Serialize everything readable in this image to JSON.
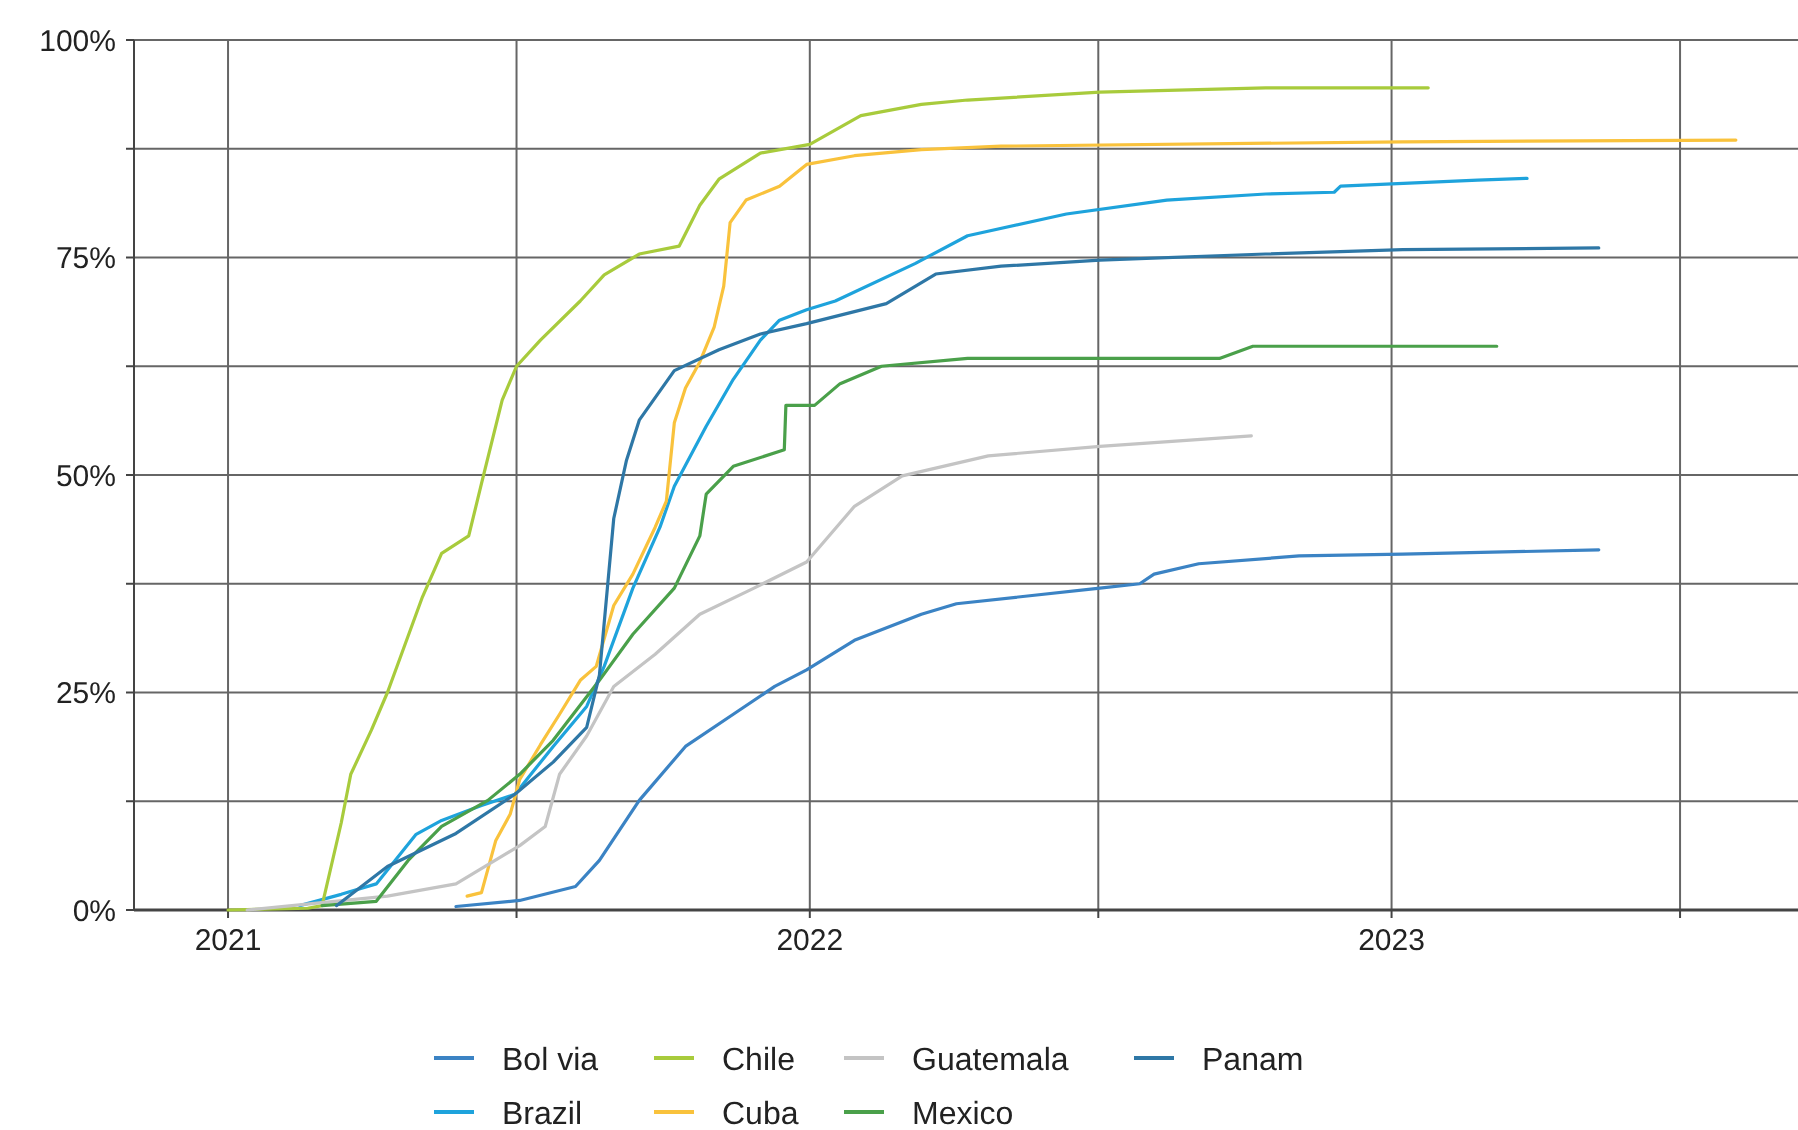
{
  "chart_data": {
    "type": "line",
    "xlim": [
      "2020-11-03",
      "2023-09-13"
    ],
    "xticks": [
      {
        "value": "2021-01-01",
        "label": "2021"
      },
      {
        "value": "2021-07-01",
        "label": null
      },
      {
        "value": "2022-01-01",
        "label": "2022"
      },
      {
        "value": "2022-07-01",
        "label": null
      },
      {
        "value": "2023-01-01",
        "label": "2023"
      },
      {
        "value": "2023-07-01",
        "label": null
      }
    ],
    "ylim": [
      0,
      100
    ],
    "yticks": [
      {
        "value": 0,
        "label": "0%"
      },
      {
        "value": 12.5,
        "label": null
      },
      {
        "value": 25,
        "label": "25%"
      },
      {
        "value": 37.5,
        "label": null
      },
      {
        "value": 50,
        "label": "50%"
      },
      {
        "value": 62.5,
        "label": null
      },
      {
        "value": 75,
        "label": "75%"
      },
      {
        "value": 87.5,
        "label": null
      },
      {
        "value": 100,
        "label": "100%"
      }
    ],
    "grid": true,
    "legend": "bottom",
    "marker": "none",
    "line_style": "solid",
    "series": [
      {
        "name": "Bol via",
        "color": "#3b83c4",
        "x": [
          "2021-05-24",
          "2021-07-03",
          "2021-08-07",
          "2021-08-22",
          "2021-09-16",
          "2021-10-15",
          "2021-11-14",
          "2021-12-10",
          "2021-12-30",
          "2022-01-29",
          "2022-03-12",
          "2022-04-03",
          "2022-07-02",
          "2022-07-27",
          "2022-08-05",
          "2022-09-02",
          "2022-11-04",
          "2023-01-08",
          "2023-05-11"
        ],
        "values": [
          0.4,
          1.1,
          2.7,
          5.7,
          12.6,
          18.8,
          22.5,
          25.7,
          27.6,
          31,
          34,
          35.2,
          37,
          37.5,
          38.6,
          39.8,
          40.7,
          40.9,
          41.4
        ]
      },
      {
        "name": "Brazil",
        "color": "#1ea3dc",
        "x": [
          "2021-02-15",
          "2021-03-13",
          "2021-04-04",
          "2021-04-29",
          "2021-05-15",
          "2021-06-09",
          "2021-06-30",
          "2021-07-24",
          "2021-08-14",
          "2021-08-25",
          "2021-09-12",
          "2021-09-29",
          "2021-10-08",
          "2021-10-28",
          "2021-11-14",
          "2021-12-01",
          "2021-12-13",
          "2021-12-30",
          "2022-01-17",
          "2022-03-08",
          "2022-04-10",
          "2022-06-11",
          "2022-08-13",
          "2022-10-14",
          "2022-11-26",
          "2022-11-30",
          "2023-02-24",
          "2023-03-27"
        ],
        "values": [
          0.5,
          1.8,
          3,
          8.7,
          10.3,
          12,
          13.3,
          18.8,
          23.4,
          28,
          37,
          44,
          48.7,
          55.6,
          61,
          65.5,
          67.8,
          69,
          70,
          74.3,
          77.5,
          80,
          81.6,
          82.3,
          82.5,
          83.2,
          83.9,
          84.1
        ]
      },
      {
        "name": "Chile",
        "color": "#a8cb3c",
        "x": [
          "2021-01-01",
          "2021-02-20",
          "2021-03-01",
          "2021-03-13",
          "2021-03-19",
          "2021-04-01",
          "2021-04-11",
          "2021-04-19",
          "2021-05-03",
          "2021-05-15",
          "2021-06-01",
          "2021-06-09",
          "2021-06-22",
          "2021-07-01",
          "2021-07-16",
          "2021-08-10",
          "2021-08-25",
          "2021-09-16",
          "2021-10-11",
          "2021-10-24",
          "2021-11-05",
          "2021-12-01",
          "2022-01-01",
          "2022-02-02",
          "2022-03-12",
          "2022-04-10",
          "2022-07-02",
          "2022-10-14",
          "2023-01-24"
        ],
        "values": [
          0,
          0.2,
          0.5,
          10,
          15.6,
          20.7,
          25,
          29,
          36,
          41,
          43,
          49,
          58.6,
          62.5,
          65.5,
          70,
          73,
          75.4,
          76.3,
          81,
          84,
          87,
          88,
          91.3,
          92.6,
          93.1,
          94,
          94.5,
          94.5
        ]
      },
      {
        "name": "Cuba",
        "color": "#f9c23c",
        "x": [
          "2021-05-31",
          "2021-06-09",
          "2021-06-18",
          "2021-06-27",
          "2021-07-03",
          "2021-07-16",
          "2021-07-28",
          "2021-08-10",
          "2021-08-20",
          "2021-08-31",
          "2021-09-12",
          "2021-09-26",
          "2021-10-03",
          "2021-10-08",
          "2021-10-15",
          "2021-10-24",
          "2021-11-02",
          "2021-11-08",
          "2021-11-12",
          "2021-11-22",
          "2021-12-13",
          "2021-12-30",
          "2022-01-29",
          "2022-03-12",
          "2022-05-01",
          "2023-01-08",
          "2023-08-05"
        ],
        "values": [
          1.6,
          2,
          8,
          11,
          15,
          19,
          22.5,
          26.4,
          28,
          35,
          38.6,
          44,
          47,
          56,
          60,
          63,
          67,
          71.7,
          79,
          81.6,
          83.2,
          85.7,
          86.7,
          87.4,
          87.8,
          88.3,
          88.5
        ]
      },
      {
        "name": "Guatemala",
        "color": "#c4c4c4",
        "x": [
          "2021-01-13",
          "2021-04-11",
          "2021-05-24",
          "2021-07-03",
          "2021-07-19",
          "2021-07-28",
          "2021-08-14",
          "2021-08-31",
          "2021-09-26",
          "2021-10-24",
          "2021-11-27",
          "2021-12-30",
          "2022-01-29",
          "2022-02-28",
          "2022-04-23",
          "2022-07-02",
          "2022-10-05"
        ],
        "values": [
          0,
          1.6,
          3,
          7.4,
          9.6,
          15.6,
          20,
          25.7,
          29.4,
          34,
          37,
          40,
          46.4,
          49.9,
          52.2,
          53.3,
          54.5
        ]
      },
      {
        "name": "Mexico",
        "color": "#4aa04a",
        "x": [
          "2021-03-01",
          "2021-04-04",
          "2021-04-24",
          "2021-05-15",
          "2021-06-13",
          "2021-07-03",
          "2021-07-24",
          "2021-08-22",
          "2021-09-12",
          "2021-10-08",
          "2021-10-24",
          "2021-10-28",
          "2021-11-14",
          "2021-12-16",
          "2021-12-17",
          "2022-01-04",
          "2022-01-20",
          "2022-02-15",
          "2022-04-10",
          "2022-09-15",
          "2022-10-06",
          "2023-03-08"
        ],
        "values": [
          0.5,
          1,
          5.7,
          9.6,
          12.6,
          15.6,
          19.5,
          26.4,
          31.7,
          37,
          43,
          47.8,
          51,
          52.9,
          58,
          58,
          60.5,
          62.5,
          63.4,
          63.4,
          64.8,
          64.8
        ]
      },
      {
        "name": "Panam",
        "color": "#2e77a6",
        "x": [
          "2021-03-10",
          "2021-04-11",
          "2021-05-24",
          "2021-06-30",
          "2021-07-24",
          "2021-08-14",
          "2021-08-22",
          "2021-08-31",
          "2021-09-08",
          "2021-09-16",
          "2021-10-08",
          "2021-11-05",
          "2021-12-01",
          "2021-12-30",
          "2022-02-18",
          "2022-03-21",
          "2022-05-01",
          "2022-07-02",
          "2022-10-14",
          "2023-01-08",
          "2023-05-11"
        ],
        "values": [
          0.5,
          5,
          8.8,
          13.3,
          17,
          21,
          27,
          45,
          51.7,
          56.3,
          62,
          64.4,
          66.2,
          67.4,
          69.7,
          73.1,
          74,
          74.7,
          75.4,
          75.9,
          76.1
        ]
      }
    ]
  }
}
